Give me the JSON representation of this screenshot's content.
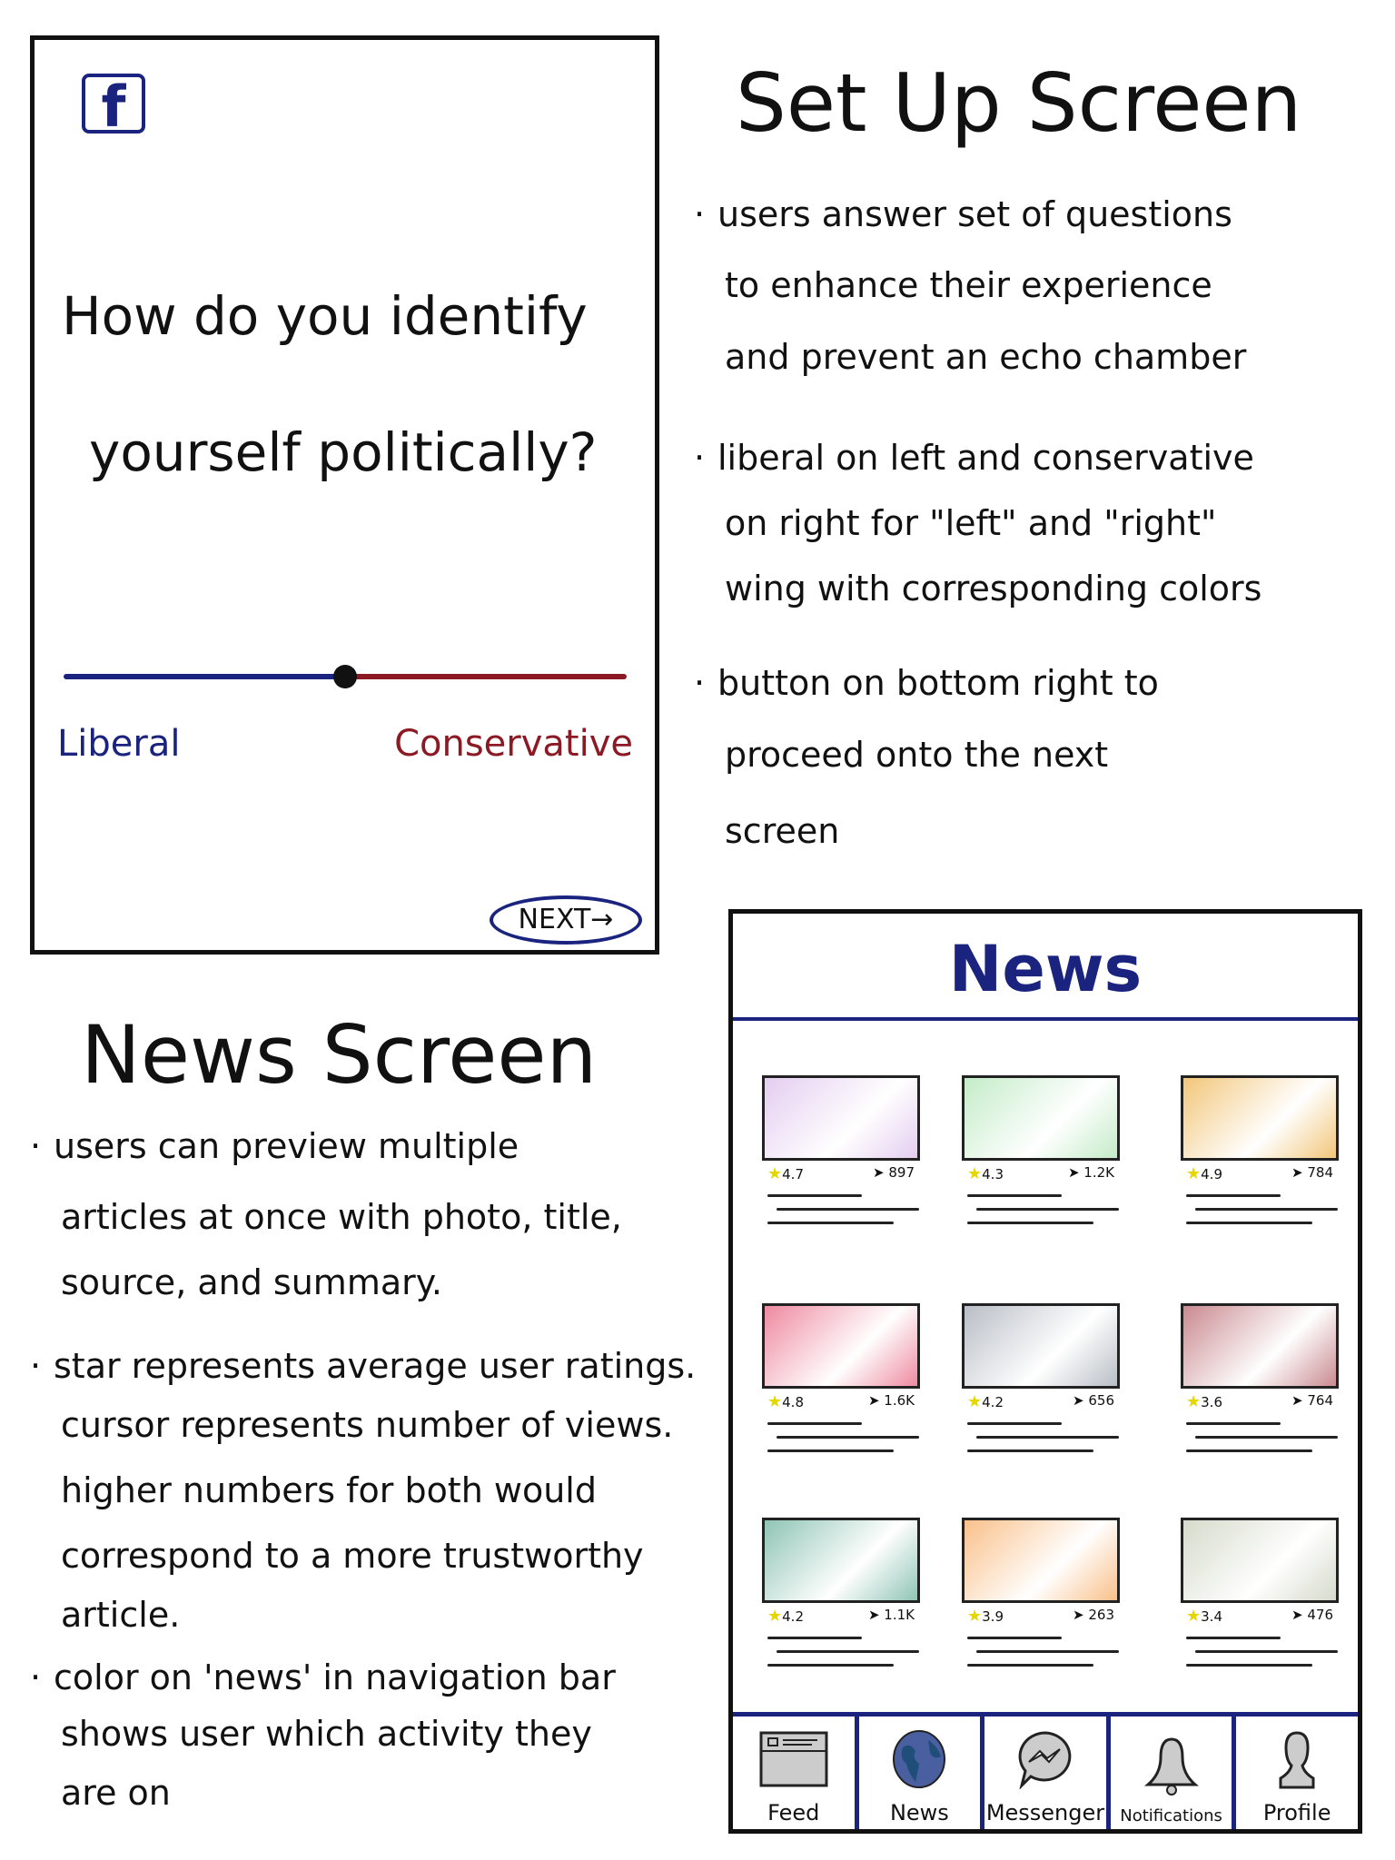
{
  "setup_phone": {
    "logo": "f",
    "question_lines": [
      "How do you identify",
      "yourself politically?"
    ],
    "slider": {
      "value": 0.5,
      "left_color": "#1a237e",
      "right_color": "#8b1a24"
    },
    "left_label": "Liberal",
    "right_label": "Conservative",
    "next_label": "NEXT→"
  },
  "setup_notes": {
    "title": "Set Up Screen",
    "bullets": [
      [
        "users answer set of questions",
        "to enhance their experience",
        "and prevent an echo chamber"
      ],
      [
        "liberal on left and conservative",
        "on right for \"left\" and \"right\"",
        "wing with corresponding colors"
      ],
      [
        "button on bottom right to",
        "proceed onto the next",
        "screen"
      ]
    ]
  },
  "news_notes": {
    "title": "News Screen",
    "bullets": [
      [
        "users can preview multiple",
        "articles at once with photo, title,",
        "source, and summary."
      ],
      [
        "star represents average user ratings.",
        "cursor represents number of views.",
        "higher numbers for both would",
        "correspond to a more trustworthy",
        "article."
      ],
      [
        "color on 'news' in navigation bar",
        "shows user which activity they",
        "are on"
      ]
    ]
  },
  "news_phone": {
    "header": "News",
    "accent": "#1a237e",
    "cards": [
      {
        "rating": "4.7",
        "views": "897",
        "color": "#e4cdf0"
      },
      {
        "rating": "4.3",
        "views": "1.2K",
        "color": "#c4ecc8"
      },
      {
        "rating": "4.9",
        "views": "784",
        "color": "#f2c67a"
      },
      {
        "rating": "4.8",
        "views": "1.6K",
        "color": "#ee8aa0"
      },
      {
        "rating": "4.2",
        "views": "656",
        "color": "#b9bec6"
      },
      {
        "rating": "3.6",
        "views": "764",
        "color": "#c98a90"
      },
      {
        "rating": "4.2",
        "views": "1.1K",
        "color": "#8fc4b4"
      },
      {
        "rating": "3.9",
        "views": "263",
        "color": "#f9c08a"
      },
      {
        "rating": "3.4",
        "views": "476",
        "color": "#d6dacb"
      }
    ],
    "nav": [
      {
        "label": "Feed",
        "icon": "feed-icon"
      },
      {
        "label": "News",
        "icon": "globe-icon"
      },
      {
        "label": "Messenger",
        "icon": "messenger-icon"
      },
      {
        "label": "Notifications",
        "icon": "bell-icon"
      },
      {
        "label": "Profile",
        "icon": "profile-icon"
      }
    ]
  }
}
